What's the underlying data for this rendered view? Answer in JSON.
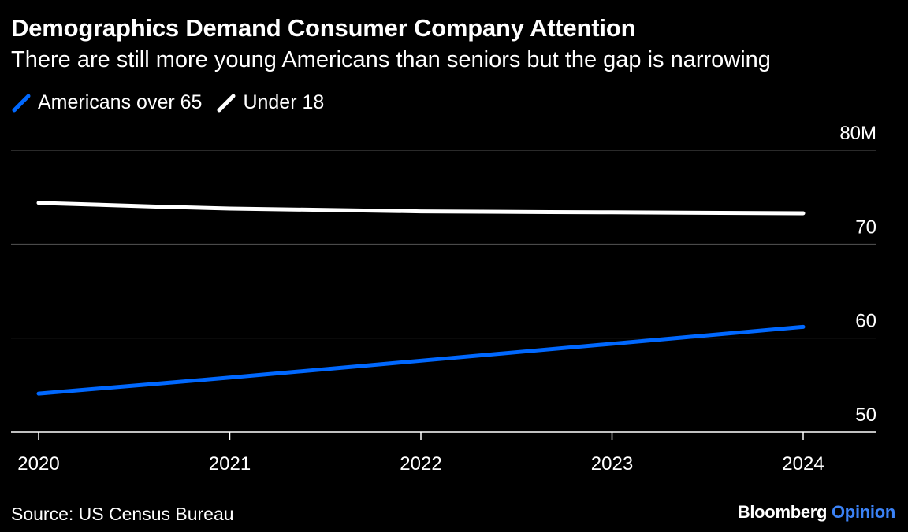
{
  "chart_data": {
    "type": "line",
    "title": "Demographics Demand Consumer Company Attention",
    "subtitle": "There are still more young Americans than seniors but the gap is narrowing",
    "x": [
      2020,
      2021,
      2022,
      2023,
      2024
    ],
    "x_tick_labels": [
      "2020",
      "2021",
      "2022",
      "2023",
      "2024"
    ],
    "y_tick_labels": [
      "50",
      "60",
      "70",
      "80M"
    ],
    "y_ticks": [
      50,
      60,
      70,
      80
    ],
    "ylim": [
      50,
      80
    ],
    "grid": true,
    "legend_position": "top-left",
    "series": [
      {
        "name": "Americans over 65",
        "color": "#0068ff",
        "values": [
          54.1,
          55.8,
          57.6,
          59.4,
          61.2
        ]
      },
      {
        "name": "Under 18",
        "color": "#ffffff",
        "values": [
          74.4,
          73.8,
          73.5,
          73.4,
          73.3
        ]
      }
    ]
  },
  "footer": {
    "source": "Source: US Census Bureau",
    "brand_primary": "Bloomberg",
    "brand_secondary": "Opinion"
  }
}
